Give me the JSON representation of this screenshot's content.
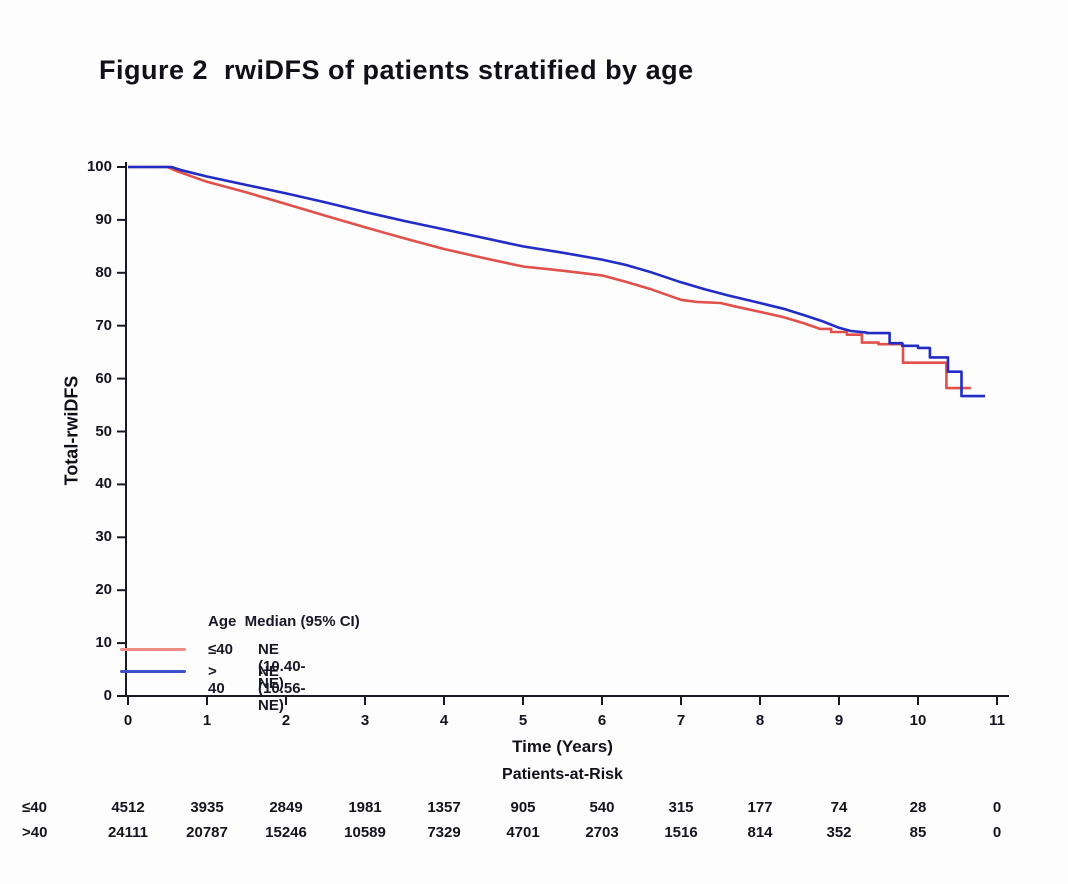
{
  "title": "Figure 2  rwiDFS of patients stratified by age",
  "chart_data": {
    "type": "line",
    "subtype": "kaplan-meier-step",
    "title": "Figure 2  rwiDFS of patients stratified by age",
    "xlabel": "Time (Years)",
    "ylabel": "Total-rwiDFS",
    "xlim": [
      0,
      11
    ],
    "ylim": [
      0,
      100
    ],
    "x_ticks": [
      0,
      1,
      2,
      3,
      4,
      5,
      6,
      7,
      8,
      9,
      10,
      11
    ],
    "y_ticks": [
      0,
      10,
      20,
      30,
      40,
      50,
      60,
      70,
      80,
      90,
      100
    ],
    "grid": false,
    "axis_color": "#1a1a24",
    "legend": {
      "position": "lower-left-inside",
      "header": "Age  Median (95% CI)",
      "items": [
        {
          "label": "≤40",
          "value": "NE (10.40-NE)",
          "swatch_color": "#ee8b83"
        },
        {
          "label": "> 40",
          "value": "NE (10.56-NE)",
          "swatch_color": "#3d50cc"
        }
      ]
    },
    "series": [
      {
        "name": "≤40",
        "median": "NE (10.40-NE)",
        "color": "#e2504a",
        "points": [
          [
            0,
            100
          ],
          [
            0.5,
            100
          ],
          [
            0.62,
            99.2
          ],
          [
            1,
            97.2
          ],
          [
            1.5,
            95.2
          ],
          [
            2,
            93.0
          ],
          [
            2.5,
            90.8
          ],
          [
            3,
            88.6
          ],
          [
            3.5,
            86.5
          ],
          [
            4,
            84.5
          ],
          [
            4.5,
            82.8
          ],
          [
            5,
            81.2
          ],
          [
            5.5,
            80.4
          ],
          [
            6,
            79.5
          ],
          [
            6.3,
            78.3
          ],
          [
            6.6,
            77.0
          ],
          [
            7,
            74.9
          ],
          [
            7.2,
            74.5
          ],
          [
            7.5,
            74.3
          ],
          [
            7.7,
            73.6
          ],
          [
            8,
            72.6
          ],
          [
            8.3,
            71.6
          ],
          [
            8.55,
            70.5
          ],
          [
            8.76,
            69.4
          ],
          [
            8.9,
            69.4
          ],
          [
            8.9,
            68.8
          ],
          [
            9.1,
            68.8
          ],
          [
            9.1,
            68.3
          ],
          [
            9.29,
            68.3
          ],
          [
            9.29,
            66.8
          ],
          [
            9.5,
            66.8
          ],
          [
            9.5,
            66.5
          ],
          [
            9.81,
            66.5
          ],
          [
            9.81,
            63.0
          ],
          [
            10.36,
            63.0
          ],
          [
            10.36,
            58.2
          ],
          [
            10.67,
            58.2
          ]
        ]
      },
      {
        "name": "> 40",
        "median": "NE (10.56-NE)",
        "color": "#212dc6",
        "points": [
          [
            0,
            100
          ],
          [
            0.55,
            100
          ],
          [
            0.7,
            99.3
          ],
          [
            1,
            98.2
          ],
          [
            1.5,
            96.6
          ],
          [
            2,
            95.0
          ],
          [
            2.5,
            93.3
          ],
          [
            3,
            91.5
          ],
          [
            3.5,
            89.8
          ],
          [
            4,
            88.2
          ],
          [
            4.5,
            86.6
          ],
          [
            5,
            85.0
          ],
          [
            5.5,
            83.8
          ],
          [
            6,
            82.5
          ],
          [
            6.3,
            81.5
          ],
          [
            6.6,
            80.2
          ],
          [
            7,
            78.2
          ],
          [
            7.3,
            76.9
          ],
          [
            7.6,
            75.7
          ],
          [
            8,
            74.3
          ],
          [
            8.3,
            73.2
          ],
          [
            8.6,
            71.8
          ],
          [
            8.8,
            70.8
          ],
          [
            9,
            69.6
          ],
          [
            9.15,
            69.0
          ],
          [
            9.35,
            68.7
          ],
          [
            9.35,
            68.6
          ],
          [
            9.64,
            68.6
          ],
          [
            9.64,
            66.7
          ],
          [
            9.8,
            66.7
          ],
          [
            9.8,
            66.2
          ],
          [
            10.0,
            66.2
          ],
          [
            10.0,
            65.8
          ],
          [
            10.15,
            65.8
          ],
          [
            10.15,
            64.0
          ],
          [
            10.38,
            64.0
          ],
          [
            10.38,
            61.3
          ],
          [
            10.55,
            61.3
          ],
          [
            10.55,
            56.7
          ],
          [
            10.85,
            56.7
          ]
        ]
      }
    ],
    "at_risk": {
      "title": "Patients-at-Risk",
      "times": [
        0,
        1,
        2,
        3,
        4,
        5,
        6,
        7,
        8,
        9,
        10,
        11
      ],
      "rows": [
        {
          "label": "≤40",
          "values": [
            4512,
            3935,
            2849,
            1981,
            1357,
            905,
            540,
            315,
            177,
            74,
            28,
            0
          ]
        },
        {
          "label": ">40",
          "values": [
            24111,
            20787,
            15246,
            10589,
            7329,
            4701,
            2703,
            1516,
            814,
            352,
            85,
            0
          ]
        }
      ]
    }
  }
}
